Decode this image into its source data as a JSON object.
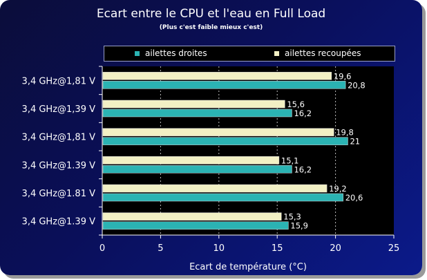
{
  "chart_data": {
    "type": "bar",
    "orientation": "horizontal",
    "title": "Ecart entre le CPU et l'eau en Full Load",
    "subtitle": "(Plus c'est faible mieux c'est)",
    "xlabel": "Ecart de température (°C)",
    "ylabel": "",
    "xlim": [
      0,
      25
    ],
    "xticks": [
      "0",
      "5",
      "10",
      "15",
      "20",
      "25"
    ],
    "grid": true,
    "legend_position": "top",
    "categories": [
      "3,4 GHz@1,81 V",
      "3,4 GHz@1,39 V",
      "3,4 GHz@1,81 V",
      "3,4 GHz@1.39 V",
      "3,4 GHz@1.81 V",
      "3,4 GHz@1.39 V"
    ],
    "series": [
      {
        "name": "ailettes recoupées",
        "color": "#f2f0c4",
        "values": [
          19.6,
          15.6,
          19.8,
          15.1,
          19.2,
          15.3
        ],
        "labels": [
          "19,6",
          "15,6",
          "19,8",
          "15,1",
          "19,2",
          "15,3"
        ]
      },
      {
        "name": "ailettes droites",
        "color": "#2bb3b3",
        "values": [
          20.8,
          16.2,
          21,
          16.2,
          20.6,
          15.9
        ],
        "labels": [
          "20,8",
          "16,2",
          "21",
          "16,2",
          "20,6",
          "15,9"
        ]
      }
    ]
  }
}
